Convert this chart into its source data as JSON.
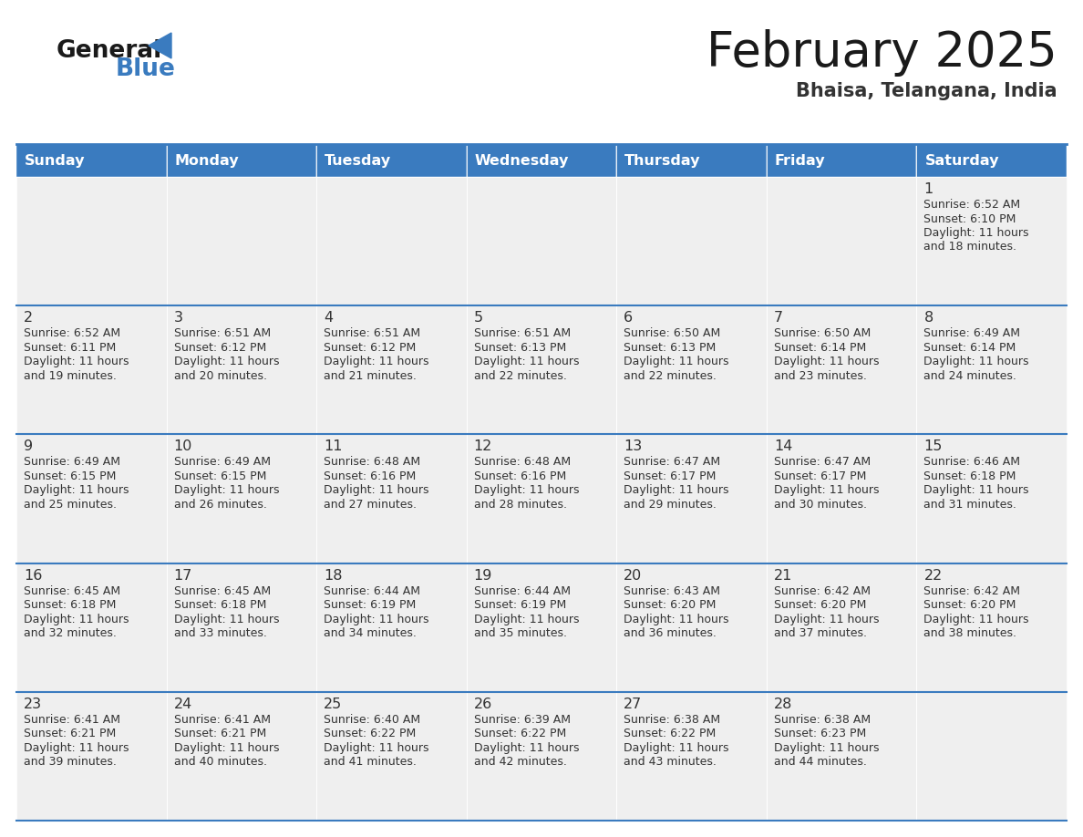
{
  "title": "February 2025",
  "subtitle": "Bhaisa, Telangana, India",
  "days_of_week": [
    "Sunday",
    "Monday",
    "Tuesday",
    "Wednesday",
    "Thursday",
    "Friday",
    "Saturday"
  ],
  "header_bg": "#3a7bbf",
  "header_text": "#ffffff",
  "cell_bg": "#efefef",
  "divider_color": "#3a7bbf",
  "day_num_color": "#333333",
  "text_color": "#333333",
  "calendar_data": [
    [
      null,
      null,
      null,
      null,
      null,
      null,
      {
        "day": "1",
        "sunrise": "6:52 AM",
        "sunset": "6:10 PM",
        "daylight_h": "11 hours",
        "daylight_m": "18 minutes."
      }
    ],
    [
      {
        "day": "2",
        "sunrise": "6:52 AM",
        "sunset": "6:11 PM",
        "daylight_h": "11 hours",
        "daylight_m": "19 minutes."
      },
      {
        "day": "3",
        "sunrise": "6:51 AM",
        "sunset": "6:12 PM",
        "daylight_h": "11 hours",
        "daylight_m": "20 minutes."
      },
      {
        "day": "4",
        "sunrise": "6:51 AM",
        "sunset": "6:12 PM",
        "daylight_h": "11 hours",
        "daylight_m": "21 minutes."
      },
      {
        "day": "5",
        "sunrise": "6:51 AM",
        "sunset": "6:13 PM",
        "daylight_h": "11 hours",
        "daylight_m": "22 minutes."
      },
      {
        "day": "6",
        "sunrise": "6:50 AM",
        "sunset": "6:13 PM",
        "daylight_h": "11 hours",
        "daylight_m": "22 minutes."
      },
      {
        "day": "7",
        "sunrise": "6:50 AM",
        "sunset": "6:14 PM",
        "daylight_h": "11 hours",
        "daylight_m": "23 minutes."
      },
      {
        "day": "8",
        "sunrise": "6:49 AM",
        "sunset": "6:14 PM",
        "daylight_h": "11 hours",
        "daylight_m": "24 minutes."
      }
    ],
    [
      {
        "day": "9",
        "sunrise": "6:49 AM",
        "sunset": "6:15 PM",
        "daylight_h": "11 hours",
        "daylight_m": "25 minutes."
      },
      {
        "day": "10",
        "sunrise": "6:49 AM",
        "sunset": "6:15 PM",
        "daylight_h": "11 hours",
        "daylight_m": "26 minutes."
      },
      {
        "day": "11",
        "sunrise": "6:48 AM",
        "sunset": "6:16 PM",
        "daylight_h": "11 hours",
        "daylight_m": "27 minutes."
      },
      {
        "day": "12",
        "sunrise": "6:48 AM",
        "sunset": "6:16 PM",
        "daylight_h": "11 hours",
        "daylight_m": "28 minutes."
      },
      {
        "day": "13",
        "sunrise": "6:47 AM",
        "sunset": "6:17 PM",
        "daylight_h": "11 hours",
        "daylight_m": "29 minutes."
      },
      {
        "day": "14",
        "sunrise": "6:47 AM",
        "sunset": "6:17 PM",
        "daylight_h": "11 hours",
        "daylight_m": "30 minutes."
      },
      {
        "day": "15",
        "sunrise": "6:46 AM",
        "sunset": "6:18 PM",
        "daylight_h": "11 hours",
        "daylight_m": "31 minutes."
      }
    ],
    [
      {
        "day": "16",
        "sunrise": "6:45 AM",
        "sunset": "6:18 PM",
        "daylight_h": "11 hours",
        "daylight_m": "32 minutes."
      },
      {
        "day": "17",
        "sunrise": "6:45 AM",
        "sunset": "6:18 PM",
        "daylight_h": "11 hours",
        "daylight_m": "33 minutes."
      },
      {
        "day": "18",
        "sunrise": "6:44 AM",
        "sunset": "6:19 PM",
        "daylight_h": "11 hours",
        "daylight_m": "34 minutes."
      },
      {
        "day": "19",
        "sunrise": "6:44 AM",
        "sunset": "6:19 PM",
        "daylight_h": "11 hours",
        "daylight_m": "35 minutes."
      },
      {
        "day": "20",
        "sunrise": "6:43 AM",
        "sunset": "6:20 PM",
        "daylight_h": "11 hours",
        "daylight_m": "36 minutes."
      },
      {
        "day": "21",
        "sunrise": "6:42 AM",
        "sunset": "6:20 PM",
        "daylight_h": "11 hours",
        "daylight_m": "37 minutes."
      },
      {
        "day": "22",
        "sunrise": "6:42 AM",
        "sunset": "6:20 PM",
        "daylight_h": "11 hours",
        "daylight_m": "38 minutes."
      }
    ],
    [
      {
        "day": "23",
        "sunrise": "6:41 AM",
        "sunset": "6:21 PM",
        "daylight_h": "11 hours",
        "daylight_m": "39 minutes."
      },
      {
        "day": "24",
        "sunrise": "6:41 AM",
        "sunset": "6:21 PM",
        "daylight_h": "11 hours",
        "daylight_m": "40 minutes."
      },
      {
        "day": "25",
        "sunrise": "6:40 AM",
        "sunset": "6:22 PM",
        "daylight_h": "11 hours",
        "daylight_m": "41 minutes."
      },
      {
        "day": "26",
        "sunrise": "6:39 AM",
        "sunset": "6:22 PM",
        "daylight_h": "11 hours",
        "daylight_m": "42 minutes."
      },
      {
        "day": "27",
        "sunrise": "6:38 AM",
        "sunset": "6:22 PM",
        "daylight_h": "11 hours",
        "daylight_m": "43 minutes."
      },
      {
        "day": "28",
        "sunrise": "6:38 AM",
        "sunset": "6:23 PM",
        "daylight_h": "11 hours",
        "daylight_m": "44 minutes."
      },
      null
    ]
  ]
}
